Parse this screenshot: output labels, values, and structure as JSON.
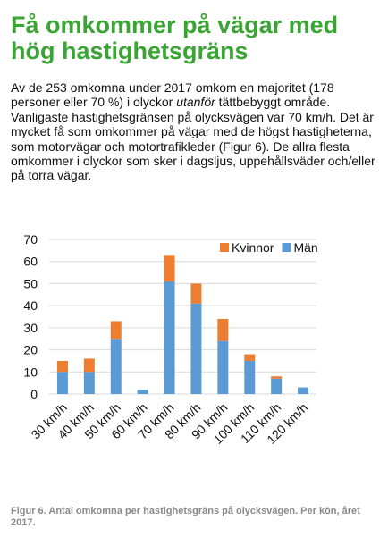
{
  "article": {
    "title": "Få omkommer på vägar med hög hastighetsgräns",
    "body_part1": "Av de 253 omkomna under 2017 omkom en majoritet (178 personer eller 70 %) i olyckor ",
    "body_emphasis": "utanför",
    "body_part2": " tättbebyggt område. Vanligaste hastighetsgränsen på olycksvägen var 70 km/h. Det är mycket få som omkommer på vägar med de högst hastigheterna, som motorvägar och motortrafikleder (Figur 6). De allra flesta omkommer i olyckor som sker i dagsljus, uppehållsväder och/eller på torra vägar.",
    "caption": "Figur 6. Antal omkomna per hastighetsgräns på olycksvägen. Per kön, året 2017."
  },
  "colors": {
    "title": "#3aa535",
    "man": "#5b9bd5",
    "kvinnor": "#ed7d31",
    "grid": "#d9d9d9",
    "axis_text": "#111111"
  },
  "chart_data": {
    "type": "bar",
    "stacked": true,
    "categories": [
      "30 km/h",
      "40 km/h",
      "50 km/h",
      "60 km/h",
      "70 km/h",
      "80 km/h",
      "90 km/h",
      "100 km/h",
      "110 km/h",
      "120 km/h"
    ],
    "series": [
      {
        "name": "Män",
        "values": [
          10,
          10,
          25,
          2,
          51,
          41,
          24,
          15,
          7,
          3
        ]
      },
      {
        "name": "Kvinnor",
        "values": [
          5,
          6,
          8,
          0,
          12,
          9,
          10,
          3,
          1,
          0
        ]
      }
    ],
    "ylim": [
      0,
      70
    ],
    "yticks": [
      0,
      10,
      20,
      30,
      40,
      50,
      60,
      70
    ],
    "legend_order": [
      "Kvinnor",
      "Män"
    ],
    "legend_position": "top-right",
    "grid": true,
    "title": "",
    "xlabel": "",
    "ylabel": ""
  }
}
